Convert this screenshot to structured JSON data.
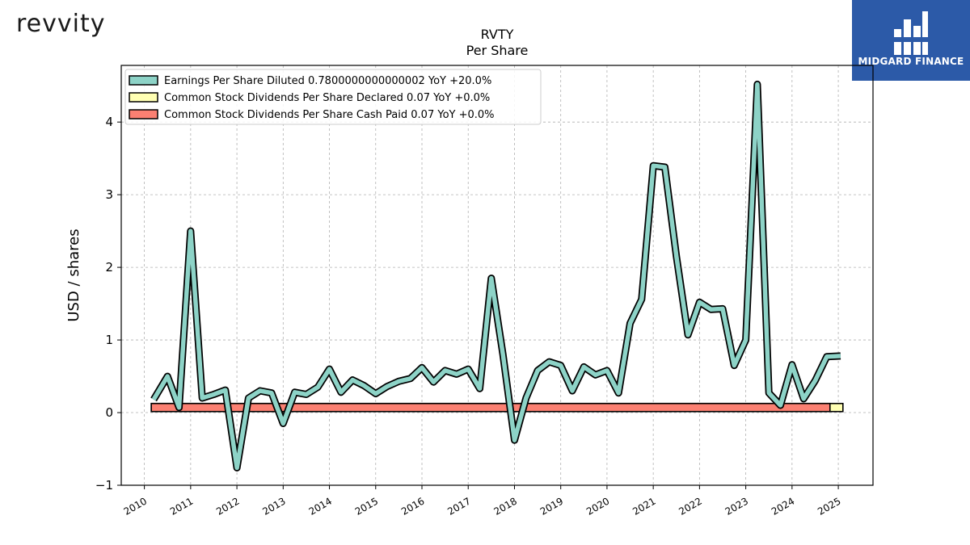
{
  "header": {
    "brand_logo_text": "revvity",
    "partner_logo_text": "MIDGARD FINANCE"
  },
  "colors": {
    "eps": "#8dd3c7",
    "dividends_declared": "#ffffb3",
    "dividends_paid": "#fb8072",
    "partner_bg": "#2c5aa8"
  },
  "chart_data": {
    "type": "line",
    "title": "RVTY",
    "subtitle": "Per  Share",
    "ylabel": "USD / shares",
    "xlabel": "",
    "ylim": [
      -1,
      4.78
    ],
    "xlim": [
      2009.5,
      2025.75
    ],
    "yticks": [
      -1,
      0,
      1,
      2,
      3,
      4
    ],
    "ytick_labels": [
      "−1",
      "0",
      "1",
      "2",
      "3",
      "4"
    ],
    "xticks": [
      2010,
      2011,
      2012,
      2013,
      2014,
      2015,
      2016,
      2017,
      2018,
      2019,
      2020,
      2021,
      2022,
      2023,
      2024,
      2025
    ],
    "xtick_labels": [
      "2010",
      "2011",
      "2012",
      "2013",
      "2014",
      "2015",
      "2016",
      "2017",
      "2018",
      "2019",
      "2020",
      "2021",
      "2022",
      "2023",
      "2024",
      "2025"
    ],
    "grid": true,
    "legend_position": "top-left",
    "series": [
      {
        "name": "Earnings Per Share Diluted",
        "legend_label": "Earnings Per Share Diluted  0.7800000000000002 YoY +20.0%",
        "style": "line",
        "x": [
          2010.2,
          2010.5,
          2010.75,
          2011.0,
          2011.25,
          2011.5,
          2011.75,
          2012.0,
          2012.25,
          2012.5,
          2012.75,
          2013.0,
          2013.25,
          2013.5,
          2013.75,
          2014.0,
          2014.25,
          2014.5,
          2014.75,
          2015.0,
          2015.25,
          2015.5,
          2015.75,
          2016.0,
          2016.25,
          2016.5,
          2016.75,
          2017.0,
          2017.25,
          2017.5,
          2017.75,
          2018.0,
          2018.25,
          2018.5,
          2018.75,
          2019.0,
          2019.25,
          2019.5,
          2019.75,
          2020.0,
          2020.25,
          2020.5,
          2020.75,
          2021.0,
          2021.25,
          2021.5,
          2021.75,
          2022.0,
          2022.25,
          2022.5,
          2022.75,
          2023.0,
          2023.25,
          2023.5,
          2023.75,
          2024.0,
          2024.25,
          2024.5,
          2024.75,
          2025.05
        ],
        "y": [
          0.18,
          0.5,
          0.07,
          2.5,
          0.2,
          0.25,
          0.31,
          -0.76,
          0.2,
          0.3,
          0.27,
          -0.15,
          0.28,
          0.25,
          0.35,
          0.6,
          0.28,
          0.45,
          0.37,
          0.26,
          0.36,
          0.43,
          0.47,
          0.62,
          0.42,
          0.58,
          0.53,
          0.6,
          0.33,
          1.85,
          0.8,
          -0.38,
          0.2,
          0.58,
          0.7,
          0.65,
          0.3,
          0.63,
          0.52,
          0.58,
          0.27,
          1.23,
          1.56,
          3.4,
          3.38,
          2.15,
          1.07,
          1.52,
          1.42,
          1.43,
          0.65,
          1.0,
          4.52,
          0.27,
          0.1,
          0.66,
          0.19,
          0.44,
          0.77,
          0.78
        ]
      },
      {
        "name": "Common Stock Dividends Per Share Declared",
        "legend_label": "Common Stock Dividends Per Share Declared  0.07 YoY +0.0%",
        "style": "band",
        "x": [
          2010.15,
          2025.1
        ],
        "y": [
          0.07,
          0.07
        ]
      },
      {
        "name": "Common Stock Dividends Per Share Cash Paid",
        "legend_label": "Common Stock Dividends Per Share Cash Paid  0.07 YoY +0.0%",
        "style": "band",
        "x": [
          2010.15,
          2024.82
        ],
        "y": [
          0.07,
          0.07
        ]
      }
    ]
  }
}
